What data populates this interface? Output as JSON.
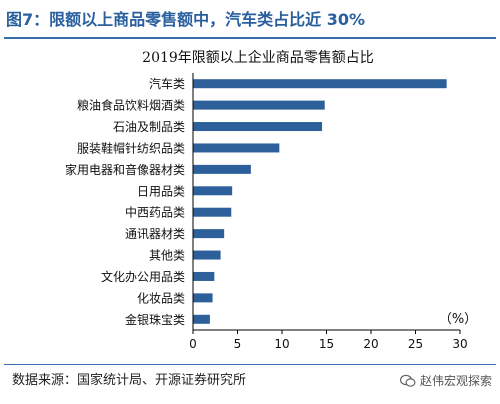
{
  "figure_title": "图7：限额以上商品零售额中，汽车类占比近 30%",
  "source_text": "数据来源：国家统计局、开源证券研究所",
  "watermark_text": "赵伟宏观探索",
  "colors": {
    "bar": "#2d5f9a",
    "title": "#2a5f9e",
    "rule": "#3a6db0"
  },
  "chart_data": {
    "type": "bar",
    "orientation": "horizontal",
    "title": "2019年限额以上企业商品零售额占比",
    "unit_label": "（%）",
    "categories": [
      "汽车类",
      "粮油食品饮料烟酒类",
      "石油及制品类",
      "服装鞋帽针纺织品类",
      "家用电器和音像器材类",
      "日用品类",
      "中西药品类",
      "通讯器材类",
      "其他类",
      "文化办公用品类",
      "化妆品类",
      "金银珠宝类"
    ],
    "values": [
      28.5,
      14.8,
      14.5,
      9.7,
      6.5,
      4.4,
      4.3,
      3.5,
      3.1,
      2.4,
      2.2,
      1.9
    ],
    "xlim": [
      0,
      30
    ],
    "xticks": [
      0,
      5,
      10,
      15,
      20,
      25,
      30
    ],
    "grid": false,
    "legend": "none"
  }
}
